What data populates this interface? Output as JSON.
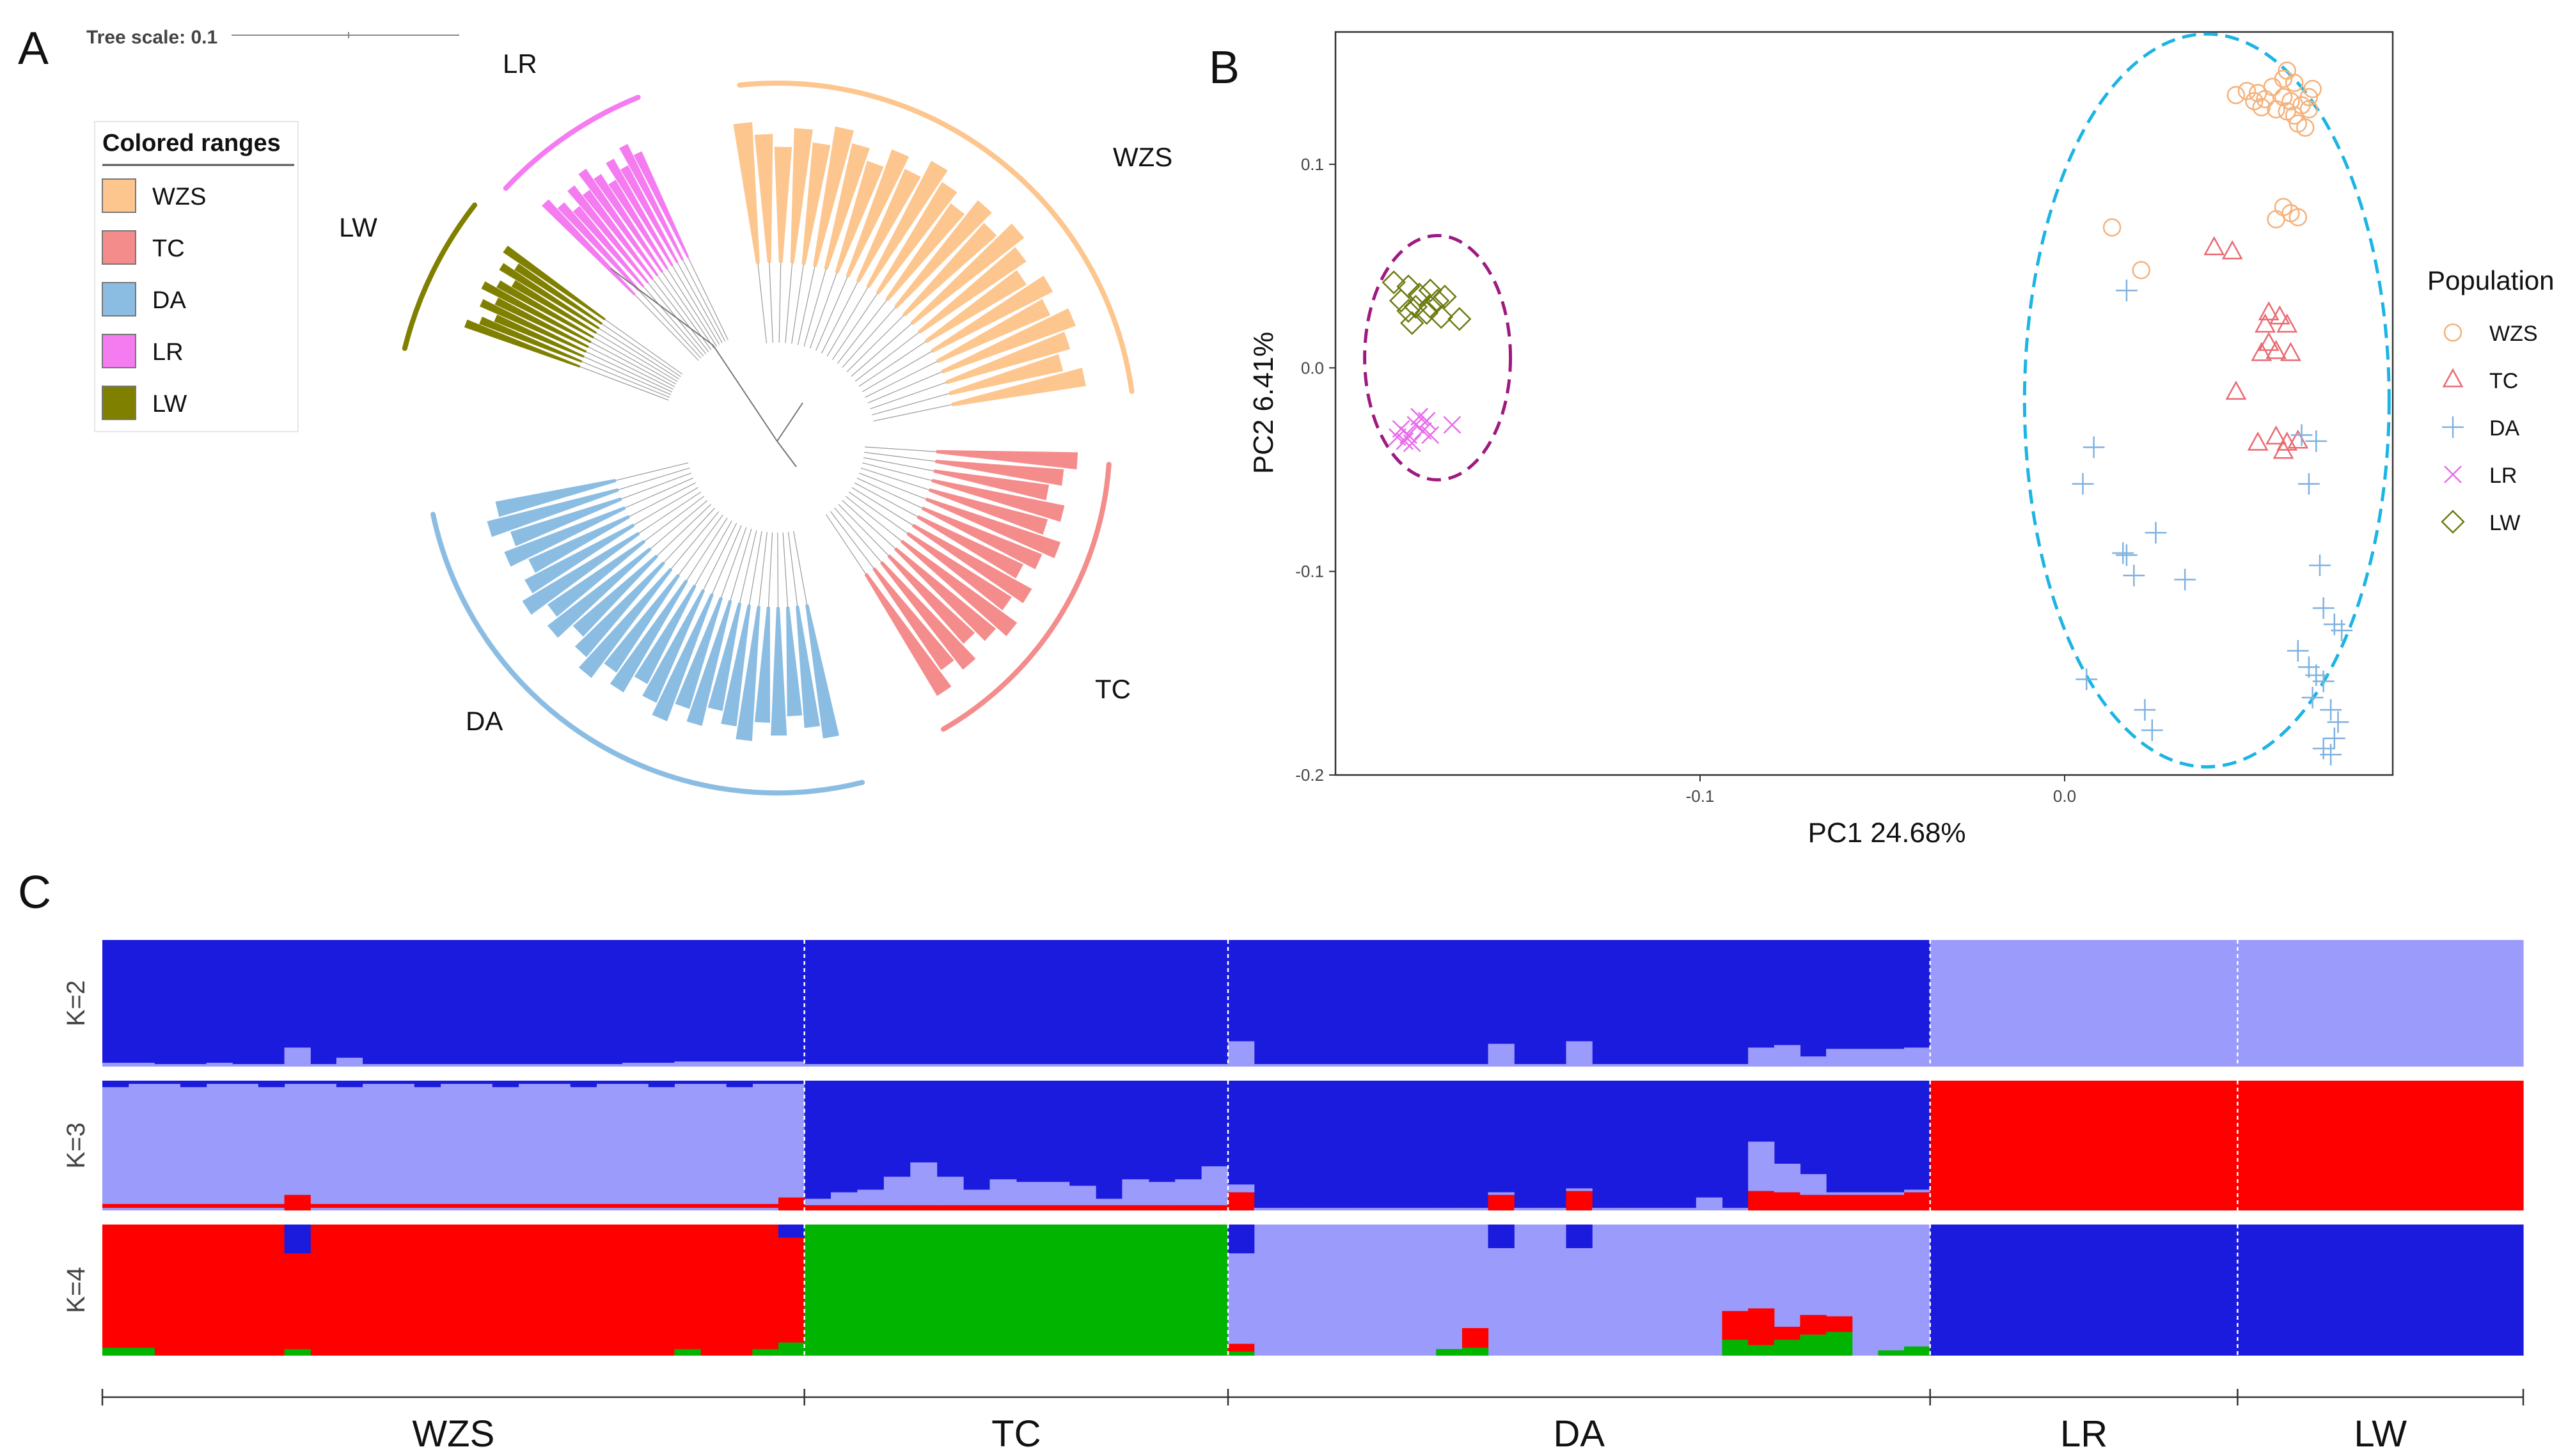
{
  "panels": {
    "a": "A",
    "b": "B",
    "c": "C"
  },
  "colors": {
    "WZS": "#FDC68F",
    "TC": "#F48C8C",
    "DA": "#8BBDE3",
    "LR": "#F47CF0",
    "LW": "#808000",
    "pca_WZS": "#F5B17A",
    "pca_TC": "#EA6A72",
    "pca_DA": "#7FB2E0",
    "pca_LR": "#E96BEB",
    "pca_LW": "#6E7A10",
    "ellipse_left": "#9E1A80",
    "ellipse_right": "#1CB4E3",
    "dark_blue": "#1A1BDC",
    "light_blue": "#9B9BFC",
    "red": "#FF0000",
    "green": "#00B400"
  },
  "tree": {
    "scale_label": "Tree scale: 0.1",
    "legend_title": "Colored ranges",
    "legend_items": [
      "WZS",
      "TC",
      "DA",
      "LR",
      "LW"
    ],
    "clade_labels": {
      "WZS": "WZS",
      "TC": "TC",
      "DA": "DA",
      "LR": "LR",
      "LW": "LW"
    }
  },
  "chart_data": [
    {
      "id": "pca",
      "type": "scatter",
      "xlabel": "PC1 24.68%",
      "ylabel": "PC2 6.41%",
      "xlim": [
        -0.2,
        0.09
      ],
      "ylim": [
        -0.2,
        0.165
      ],
      "xticks": [
        -0.1,
        0.0
      ],
      "xtick_labels": [
        "-0.1",
        "0.0"
      ],
      "yticks": [
        0.1,
        0.0,
        -0.1,
        -0.2
      ],
      "ytick_labels": [
        "0.1",
        "0.0",
        "-0.1",
        "-0.2"
      ],
      "legend_title": "Population",
      "series": [
        {
          "name": "WZS",
          "marker": "circle",
          "points": [
            [
              0.05,
              0.136
            ],
            [
              0.053,
              0.135
            ],
            [
              0.055,
              0.132
            ],
            [
              0.057,
              0.138
            ],
            [
              0.06,
              0.133
            ],
            [
              0.062,
              0.131
            ],
            [
              0.058,
              0.127
            ],
            [
              0.061,
              0.126
            ],
            [
              0.063,
              0.124
            ],
            [
              0.065,
              0.129
            ],
            [
              0.067,
              0.127
            ],
            [
              0.064,
              0.12
            ],
            [
              0.066,
              0.118
            ],
            [
              0.06,
              0.142
            ],
            [
              0.061,
              0.146
            ],
            [
              0.063,
              0.14
            ],
            [
              0.067,
              0.133
            ],
            [
              0.068,
              0.137
            ],
            [
              0.054,
              0.128
            ],
            [
              0.052,
              0.131
            ],
            [
              0.047,
              0.134
            ],
            [
              0.06,
              0.079
            ],
            [
              0.062,
              0.076
            ],
            [
              0.058,
              0.073
            ],
            [
              0.064,
              0.074
            ],
            [
              0.013,
              0.069
            ],
            [
              0.021,
              0.048
            ]
          ]
        },
        {
          "name": "TC",
          "marker": "triangle",
          "points": [
            [
              0.041,
              0.059
            ],
            [
              0.046,
              0.057
            ],
            [
              0.056,
              0.027
            ],
            [
              0.059,
              0.025
            ],
            [
              0.055,
              0.021
            ],
            [
              0.061,
              0.021
            ],
            [
              0.056,
              0.012
            ],
            [
              0.054,
              0.007
            ],
            [
              0.058,
              0.008
            ],
            [
              0.062,
              0.007
            ],
            [
              0.047,
              -0.012
            ],
            [
              0.053,
              -0.037
            ],
            [
              0.058,
              -0.034
            ],
            [
              0.061,
              -0.037
            ],
            [
              0.064,
              -0.036
            ],
            [
              0.06,
              -0.041
            ]
          ]
        },
        {
          "name": "DA",
          "marker": "plus",
          "points": [
            [
              0.017,
              0.038
            ],
            [
              0.008,
              -0.039
            ],
            [
              0.005,
              -0.057
            ],
            [
              0.016,
              -0.091
            ],
            [
              0.019,
              -0.102
            ],
            [
              0.025,
              -0.081
            ],
            [
              0.033,
              -0.104
            ],
            [
              0.017,
              -0.092
            ],
            [
              0.006,
              -0.153
            ],
            [
              0.022,
              -0.168
            ],
            [
              0.024,
              -0.178
            ],
            [
              0.065,
              -0.033
            ],
            [
              0.069,
              -0.036
            ],
            [
              0.067,
              -0.057
            ],
            [
              0.07,
              -0.097
            ],
            [
              0.071,
              -0.118
            ],
            [
              0.074,
              -0.126
            ],
            [
              0.076,
              -0.129
            ],
            [
              0.064,
              -0.139
            ],
            [
              0.067,
              -0.147
            ],
            [
              0.069,
              -0.151
            ],
            [
              0.071,
              -0.154
            ],
            [
              0.068,
              -0.162
            ],
            [
              0.073,
              -0.168
            ],
            [
              0.075,
              -0.174
            ],
            [
              0.074,
              -0.182
            ],
            [
              0.071,
              -0.187
            ],
            [
              0.073,
              -0.19
            ]
          ]
        },
        {
          "name": "LR",
          "marker": "x",
          "points": [
            [
              -0.182,
              -0.03
            ],
            [
              -0.18,
              -0.033
            ],
            [
              -0.178,
              -0.028
            ],
            [
              -0.176,
              -0.031
            ],
            [
              -0.179,
              -0.037
            ],
            [
              -0.181,
              -0.036
            ],
            [
              -0.177,
              -0.024
            ],
            [
              -0.175,
              -0.026
            ],
            [
              -0.168,
              -0.028
            ],
            [
              -0.183,
              -0.034
            ],
            [
              -0.174,
              -0.033
            ]
          ]
        },
        {
          "name": "LW",
          "marker": "diamond",
          "points": [
            [
              -0.184,
              0.042
            ],
            [
              -0.18,
              0.04
            ],
            [
              -0.177,
              0.036
            ],
            [
              -0.174,
              0.038
            ],
            [
              -0.182,
              0.033
            ],
            [
              -0.178,
              0.03
            ],
            [
              -0.172,
              0.033
            ],
            [
              -0.17,
              0.035
            ],
            [
              -0.175,
              0.027
            ],
            [
              -0.179,
              0.022
            ],
            [
              -0.171,
              0.025
            ],
            [
              -0.166,
              0.024
            ],
            [
              -0.18,
              0.028
            ],
            [
              -0.174,
              0.03
            ]
          ]
        }
      ],
      "ellipses": [
        {
          "name": "left",
          "center": [
            -0.172,
            0.005
          ],
          "radii": [
            0.02,
            0.06
          ]
        },
        {
          "name": "right",
          "center": [
            0.039,
            -0.016
          ],
          "radii": [
            0.05,
            0.18
          ]
        }
      ]
    },
    {
      "id": "admixture",
      "type": "bar",
      "stacked": true,
      "rows": [
        "K=2",
        "K=3",
        "K=4"
      ],
      "populations": [
        "WZS",
        "TC",
        "DA",
        "LR",
        "LW"
      ],
      "pop_sizes": [
        27,
        16,
        27,
        12,
        11
      ],
      "pop_props": [
        0.29,
        0.175,
        0.29,
        0.127,
        0.118
      ],
      "notes": "Each row is a stacked bar of ancestry proportions per individual; values below are the minor-component heights (fraction of bar height, 0-1).",
      "K2": {
        "base_color": "dark_blue",
        "wzs_light": [
          0.03,
          0.03,
          0.02,
          0.02,
          0.03,
          0.02,
          0.02,
          0.02,
          0.02,
          0.02,
          0.02,
          0.02,
          0.02,
          0.02,
          0.02,
          0.02,
          0.02,
          0.02,
          0.02,
          0.02,
          0.03,
          0.03,
          0.04,
          0.04,
          0.04,
          0.04,
          0.04
        ],
        "wzs_spike": [
          7,
          0.15
        ],
        "wzs_spike2": [
          9,
          0.07
        ],
        "tc_light": [
          0.02,
          0.02,
          0.02,
          0.02,
          0.02,
          0.02,
          0.02,
          0.02,
          0.02,
          0.02,
          0.02,
          0.02,
          0.02,
          0.02,
          0.02,
          0.02
        ],
        "da_light": [
          0.2,
          0.02,
          0.02,
          0.02,
          0.02,
          0.02,
          0.02,
          0.02,
          0.02,
          0.02,
          0.18,
          0.02,
          0.02,
          0.2,
          0.02,
          0.02,
          0.02,
          0.02,
          0.02,
          0.02,
          0.15,
          0.17,
          0.08,
          0.14,
          0.14,
          0.14,
          0.15
        ],
        "lr_color": "light_blue",
        "lw_color": "light_blue"
      },
      "K3": {
        "wzs_top": 0.05,
        "wzs_spikes": [
          [
            7,
            0.12
          ],
          [
            26,
            0.1
          ]
        ],
        "tc_light": [
          0.05,
          0.1,
          0.12,
          0.22,
          0.33,
          0.22,
          0.12,
          0.2,
          0.18,
          0.18,
          0.15,
          0.05,
          0.2,
          0.18,
          0.2,
          0.3
        ],
        "da_light": [
          0.06,
          0.02,
          0.02,
          0.02,
          0.02,
          0.02,
          0.02,
          0.02,
          0.02,
          0.02,
          0.02,
          0.02,
          0.02,
          0.02,
          0.02,
          0.02,
          0.02,
          0.02,
          0.1,
          0.02,
          0.38,
          0.22,
          0.16,
          0.02,
          0.02,
          0.02,
          0.02
        ],
        "da_red": [
          0.14,
          0,
          0,
          0,
          0,
          0,
          0,
          0,
          0,
          0,
          0.12,
          0,
          0,
          0.15,
          0,
          0,
          0,
          0,
          0,
          0,
          0.15,
          0.14,
          0.12,
          0.12,
          0.12,
          0.12,
          0.14
        ],
        "lr_color": "red",
        "lw_color": "red"
      },
      "K4": {
        "wzs_base": "red",
        "wzs_green": [
          0.06,
          0.06,
          0,
          0,
          0,
          0,
          0,
          0.05,
          0,
          0,
          0,
          0,
          0,
          0,
          0,
          0,
          0,
          0,
          0,
          0,
          0,
          0,
          0.05,
          0,
          0,
          0.05,
          0.1
        ],
        "wzs_blue_spike": [
          7,
          0.22
        ],
        "tc_base": "green",
        "da_base": "light_blue",
        "da_red": [
          0.06,
          0,
          0,
          0,
          0,
          0,
          0,
          0,
          0,
          0.15,
          0,
          0,
          0,
          0,
          0,
          0,
          0,
          0,
          0,
          0.22,
          0.28,
          0.1,
          0.15,
          0.12,
          0,
          0,
          0
        ],
        "da_green": [
          0.03,
          0,
          0,
          0,
          0,
          0,
          0,
          0,
          0.05,
          0.06,
          0,
          0,
          0,
          0,
          0,
          0,
          0,
          0,
          0,
          0.12,
          0.08,
          0.12,
          0.16,
          0.18,
          0,
          0.04,
          0.07
        ],
        "da_blue_spikes": [
          [
            0,
            0.22
          ],
          [
            10,
            0.18
          ],
          [
            13,
            0.18
          ]
        ],
        "lr_color": "dark_blue",
        "lw_color": "dark_blue"
      },
      "xlabels": [
        "WZS",
        "TC",
        "DA",
        "LR",
        "LW"
      ]
    }
  ]
}
